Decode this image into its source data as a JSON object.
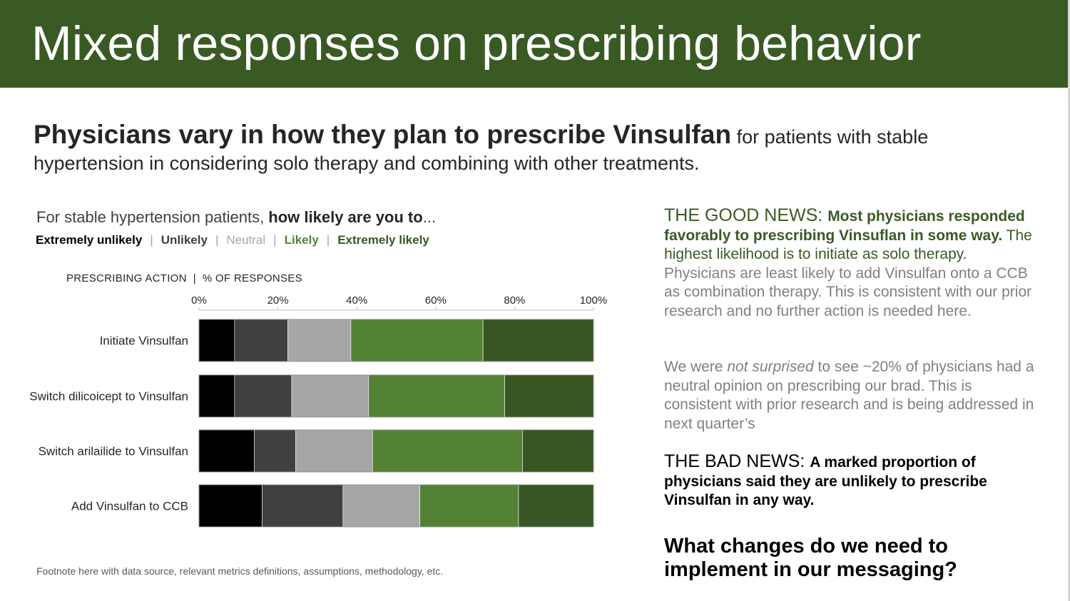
{
  "header": {
    "title": "Mixed responses on prescribing behavior"
  },
  "subtitle": {
    "bold": "Physicians vary in how they plan to prescribe Vinsulfan",
    "rest": " for patients with stable hypertension in considering solo therapy and combining with other treatments."
  },
  "chart_question": {
    "prefix": "For stable hypertension patients, ",
    "bold": "how likely are you to",
    "suffix": "..."
  },
  "legend": [
    {
      "label": "Extremely unlikely",
      "color": "#000000"
    },
    {
      "label": "Unlikely",
      "color": "#404040"
    },
    {
      "label": "Neutral",
      "color": "#a6a6a6"
    },
    {
      "label": "Likely",
      "color": "#548235"
    },
    {
      "label": "Extremely likely",
      "color": "#375623"
    }
  ],
  "legend_separator": "|",
  "axis_title": "PRESCRIBING ACTION  |  % OF RESPONSES",
  "chart_data": {
    "type": "bar",
    "orientation": "horizontal",
    "stacked": true,
    "percent": true,
    "categories": [
      "Initiate Vinsulfan",
      "Switch dilicoicept to Vinsulfan",
      "Switch arilailide to Vinsulfan",
      "Add Vinsulfan to CCB"
    ],
    "series": [
      {
        "name": "Extremely unlikely",
        "values": [
          9,
          9,
          14,
          16
        ],
        "color": "#000000"
      },
      {
        "name": "Unlikely",
        "values": [
          13.5,
          14.5,
          10.5,
          20.5
        ],
        "color": "#404040"
      },
      {
        "name": "Neutral",
        "values": [
          16,
          19.5,
          19.5,
          19.5
        ],
        "color": "#a6a6a6"
      },
      {
        "name": "Likely",
        "values": [
          33.5,
          34.5,
          38,
          25
        ],
        "color": "#548235"
      },
      {
        "name": "Extremely likely",
        "values": [
          28,
          22.5,
          18,
          19
        ],
        "color": "#375623"
      }
    ],
    "xlim": [
      0,
      100
    ],
    "xticks": [
      0,
      20,
      40,
      60,
      80,
      100
    ],
    "tick_labels": [
      "0%",
      "20%",
      "40%",
      "60%",
      "80%",
      "100%"
    ],
    "xlabel": "% OF RESPONSES",
    "ylabel": "PRESCRIBING ACTION"
  },
  "footnote": "Footnote here with data source, relevant metrics definitions, assumptions, methodology, etc.",
  "good_news": {
    "head": "THE GOOD NEWS: ",
    "bold": "Most physicians responded favorably to prescribing Vinsuflan in some way.",
    "green": " The highest likelihood is to initiate as solo therapy.",
    "rest": " Physicians are least likely to add Vinsulfan onto a CCB as combination therapy. This is consistent with our prior research and no further action is needed here."
  },
  "neutral_note": {
    "prefix": "We were ",
    "italic": "not surprised",
    "rest": " to see ~20% of physicians had a neutral opinion on prescribing our brad. This is consistent with prior research and is being addressed in next quarter’s"
  },
  "bad_news": {
    "head": "THE BAD NEWS: ",
    "bold": "A marked proportion of physicians said they are unlikely to prescribe Vinsulfan in any way."
  },
  "question": "What changes do we need to implement in our messaging?"
}
